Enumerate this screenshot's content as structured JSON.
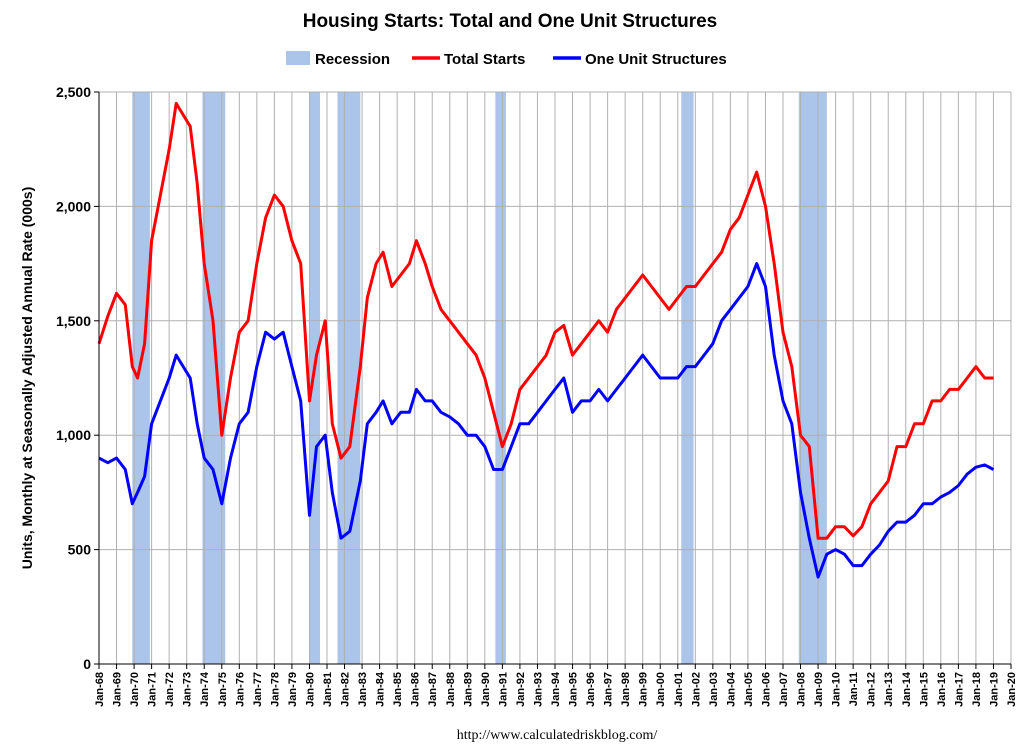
{
  "chart_data": {
    "type": "line",
    "title": "Housing Starts: Total and One Unit Structures",
    "ylabel": "Units, Monthly at Seasonally Adjusted Annual Rate (000s)",
    "xlabel": "",
    "source": "http://www.calculatedriskblog.com/",
    "ylim": [
      0,
      2500
    ],
    "xlim": [
      1968.0,
      2020.0
    ],
    "y_ticks": [
      0,
      500,
      1000,
      1500,
      2000,
      2500
    ],
    "y_tick_labels": [
      "0",
      "500",
      "1,000",
      "1,500",
      "2,000",
      "2,500"
    ],
    "x_tick_labels": [
      "Jan-68",
      "Jan-69",
      "Jan-70",
      "Jan-71",
      "Jan-72",
      "Jan-73",
      "Jan-74",
      "Jan-75",
      "Jan-76",
      "Jan-77",
      "Jan-78",
      "Jan-79",
      "Jan-80",
      "Jan-81",
      "Jan-82",
      "Jan-83",
      "Jan-84",
      "Jan-85",
      "Jan-86",
      "Jan-87",
      "Jan-88",
      "Jan-89",
      "Jan-90",
      "Jan-91",
      "Jan-92",
      "Jan-93",
      "Jan-94",
      "Jan-95",
      "Jan-96",
      "Jan-97",
      "Jan-98",
      "Jan-99",
      "Jan-00",
      "Jan-01",
      "Jan-02",
      "Jan-03",
      "Jan-04",
      "Jan-05",
      "Jan-06",
      "Jan-07",
      "Jan-08",
      "Jan-09",
      "Jan-10",
      "Jan-11",
      "Jan-12",
      "Jan-13",
      "Jan-14",
      "Jan-15",
      "Jan-16",
      "Jan-17",
      "Jan-18",
      "Jan-19",
      "Jan-20"
    ],
    "grid": true,
    "legend_position": "top-center",
    "legend": [
      {
        "label": "Recession",
        "color": "#aac4ea",
        "kind": "box"
      },
      {
        "label": "Total Starts",
        "color": "#ff0000",
        "kind": "line"
      },
      {
        "label": "One Unit Structures",
        "color": "#0000ff",
        "kind": "line"
      }
    ],
    "recessions": [
      [
        1969.9,
        1970.9
      ],
      [
        1973.9,
        1975.2
      ],
      [
        1980.0,
        1980.6
      ],
      [
        1981.6,
        1982.9
      ],
      [
        1990.6,
        1991.2
      ],
      [
        2001.2,
        2001.9
      ],
      [
        2007.9,
        2009.5
      ]
    ],
    "series": [
      {
        "name": "Total Starts",
        "color": "#ff0000",
        "x": [
          1968.0,
          1968.5,
          1969.0,
          1969.5,
          1969.9,
          1970.2,
          1970.6,
          1971.0,
          1971.5,
          1972.0,
          1972.4,
          1972.8,
          1973.2,
          1973.6,
          1974.0,
          1974.5,
          1975.0,
          1975.5,
          1976.0,
          1976.5,
          1977.0,
          1977.5,
          1978.0,
          1978.5,
          1979.0,
          1979.5,
          1980.0,
          1980.4,
          1980.9,
          1981.3,
          1981.8,
          1982.3,
          1982.9,
          1983.3,
          1983.8,
          1984.2,
          1984.7,
          1985.2,
          1985.7,
          1986.1,
          1986.6,
          1987.0,
          1987.5,
          1988.0,
          1988.5,
          1989.0,
          1989.5,
          1990.0,
          1990.5,
          1991.0,
          1991.5,
          1992.0,
          1992.5,
          1993.0,
          1993.5,
          1994.0,
          1994.5,
          1995.0,
          1995.5,
          1996.0,
          1996.5,
          1997.0,
          1997.5,
          1998.0,
          1998.5,
          1999.0,
          1999.5,
          2000.0,
          2000.5,
          2001.0,
          2001.5,
          2002.0,
          2002.5,
          2003.0,
          2003.5,
          2004.0,
          2004.5,
          2005.0,
          2005.5,
          2006.0,
          2006.5,
          2007.0,
          2007.5,
          2008.0,
          2008.5,
          2009.0,
          2009.5,
          2010.0,
          2010.5,
          2011.0,
          2011.5,
          2012.0,
          2012.5,
          2013.0,
          2013.5,
          2014.0,
          2014.5,
          2015.0,
          2015.5,
          2016.0,
          2016.5,
          2017.0,
          2017.5,
          2018.0,
          2018.5,
          2019.0
        ],
        "y": [
          1400,
          1520,
          1620,
          1570,
          1300,
          1250,
          1400,
          1850,
          2050,
          2250,
          2450,
          2400,
          2350,
          2100,
          1750,
          1500,
          1000,
          1250,
          1450,
          1500,
          1750,
          1950,
          2050,
          2000,
          1850,
          1750,
          1150,
          1350,
          1500,
          1050,
          900,
          950,
          1300,
          1600,
          1750,
          1800,
          1650,
          1700,
          1750,
          1850,
          1750,
          1650,
          1550,
          1500,
          1450,
          1400,
          1350,
          1250,
          1100,
          950,
          1050,
          1200,
          1250,
          1300,
          1350,
          1450,
          1480,
          1350,
          1400,
          1450,
          1500,
          1450,
          1550,
          1600,
          1650,
          1700,
          1650,
          1600,
          1550,
          1600,
          1650,
          1650,
          1700,
          1750,
          1800,
          1900,
          1950,
          2050,
          2150,
          2000,
          1750,
          1450,
          1300,
          1000,
          950,
          550,
          550,
          600,
          600,
          560,
          600,
          700,
          750,
          800,
          950,
          950,
          1050,
          1050,
          1150,
          1150,
          1200,
          1200,
          1250,
          1300,
          1250,
          1250
        ]
      },
      {
        "name": "One Unit Structures",
        "color": "#0000ff",
        "x": [
          1968.0,
          1968.5,
          1969.0,
          1969.5,
          1969.9,
          1970.2,
          1970.6,
          1971.0,
          1971.5,
          1972.0,
          1972.4,
          1972.8,
          1973.2,
          1973.6,
          1974.0,
          1974.5,
          1975.0,
          1975.5,
          1976.0,
          1976.5,
          1977.0,
          1977.5,
          1978.0,
          1978.5,
          1979.0,
          1979.5,
          1980.0,
          1980.4,
          1980.9,
          1981.3,
          1981.8,
          1982.3,
          1982.9,
          1983.3,
          1983.8,
          1984.2,
          1984.7,
          1985.2,
          1985.7,
          1986.1,
          1986.6,
          1987.0,
          1987.5,
          1988.0,
          1988.5,
          1989.0,
          1989.5,
          1990.0,
          1990.5,
          1991.0,
          1991.5,
          1992.0,
          1992.5,
          1993.0,
          1993.5,
          1994.0,
          1994.5,
          1995.0,
          1995.5,
          1996.0,
          1996.5,
          1997.0,
          1997.5,
          1998.0,
          1998.5,
          1999.0,
          1999.5,
          2000.0,
          2000.5,
          2001.0,
          2001.5,
          2002.0,
          2002.5,
          2003.0,
          2003.5,
          2004.0,
          2004.5,
          2005.0,
          2005.5,
          2006.0,
          2006.5,
          2007.0,
          2007.5,
          2008.0,
          2008.5,
          2009.0,
          2009.5,
          2010.0,
          2010.5,
          2011.0,
          2011.5,
          2012.0,
          2012.5,
          2013.0,
          2013.5,
          2014.0,
          2014.5,
          2015.0,
          2015.5,
          2016.0,
          2016.5,
          2017.0,
          2017.5,
          2018.0,
          2018.5,
          2019.0
        ],
        "y": [
          900,
          880,
          900,
          850,
          700,
          750,
          820,
          1050,
          1150,
          1250,
          1350,
          1300,
          1250,
          1050,
          900,
          850,
          700,
          900,
          1050,
          1100,
          1300,
          1450,
          1420,
          1450,
          1300,
          1150,
          650,
          950,
          1000,
          750,
          550,
          580,
          800,
          1050,
          1100,
          1150,
          1050,
          1100,
          1100,
          1200,
          1150,
          1150,
          1100,
          1080,
          1050,
          1000,
          1000,
          950,
          850,
          850,
          950,
          1050,
          1050,
          1100,
          1150,
          1200,
          1250,
          1100,
          1150,
          1150,
          1200,
          1150,
          1200,
          1250,
          1300,
          1350,
          1300,
          1250,
          1250,
          1250,
          1300,
          1300,
          1350,
          1400,
          1500,
          1550,
          1600,
          1650,
          1750,
          1650,
          1350,
          1150,
          1050,
          750,
          550,
          380,
          480,
          500,
          480,
          430,
          430,
          480,
          520,
          580,
          620,
          620,
          650,
          700,
          700,
          730,
          750,
          780,
          830,
          860,
          870,
          850
        ]
      }
    ]
  }
}
